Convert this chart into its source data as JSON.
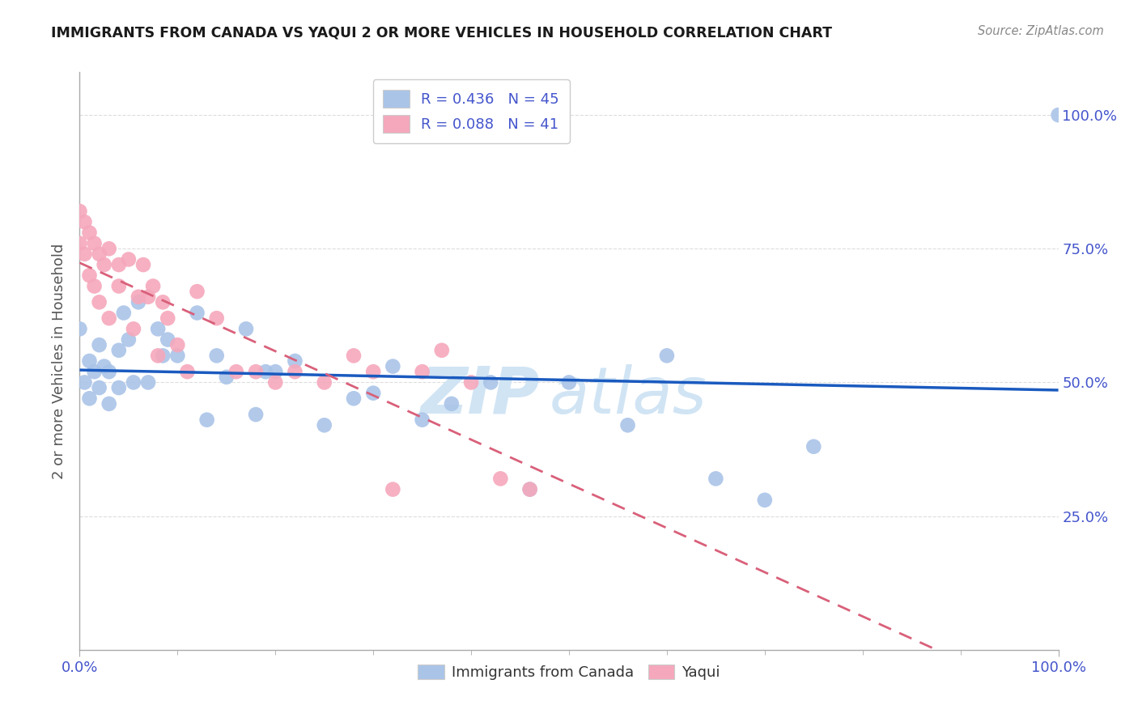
{
  "title": "IMMIGRANTS FROM CANADA VS YAQUI 2 OR MORE VEHICLES IN HOUSEHOLD CORRELATION CHART",
  "source": "Source: ZipAtlas.com",
  "ylabel": "2 or more Vehicles in Household",
  "legend_label1": "Immigrants from Canada",
  "legend_label2": "Yaqui",
  "R1": "0.436",
  "N1": "45",
  "R2": "0.088",
  "N2": "41",
  "color_blue": "#aac4e8",
  "color_pink": "#f5a8bc",
  "line_color_blue": "#1a5abf",
  "line_color_pink": "#d9607a",
  "tick_color": "#4455cc",
  "title_color": "#1a1a1a",
  "source_color": "#888888",
  "ylabel_color": "#555555",
  "grid_color": "#dddddd",
  "watermark_color": "#d0e4f4",
  "blue_scatter_x": [
    0.0,
    0.005,
    0.01,
    0.01,
    0.015,
    0.02,
    0.02,
    0.025,
    0.03,
    0.03,
    0.04,
    0.04,
    0.045,
    0.05,
    0.055,
    0.06,
    0.07,
    0.08,
    0.085,
    0.09,
    0.1,
    0.12,
    0.13,
    0.14,
    0.15,
    0.17,
    0.18,
    0.19,
    0.2,
    0.22,
    0.25,
    0.28,
    0.3,
    0.32,
    0.35,
    0.38,
    0.42,
    0.46,
    0.5,
    0.56,
    0.6,
    0.65,
    0.7,
    0.75,
    1.0
  ],
  "blue_scatter_y": [
    0.6,
    0.5,
    0.54,
    0.47,
    0.52,
    0.49,
    0.57,
    0.53,
    0.52,
    0.46,
    0.56,
    0.49,
    0.63,
    0.58,
    0.5,
    0.65,
    0.5,
    0.6,
    0.55,
    0.58,
    0.55,
    0.63,
    0.43,
    0.55,
    0.51,
    0.6,
    0.44,
    0.52,
    0.52,
    0.54,
    0.42,
    0.47,
    0.48,
    0.53,
    0.43,
    0.46,
    0.5,
    0.3,
    0.5,
    0.42,
    0.55,
    0.32,
    0.28,
    0.38,
    1.0
  ],
  "pink_scatter_x": [
    0.0,
    0.0,
    0.005,
    0.005,
    0.01,
    0.01,
    0.015,
    0.015,
    0.02,
    0.02,
    0.025,
    0.03,
    0.03,
    0.04,
    0.04,
    0.05,
    0.055,
    0.06,
    0.065,
    0.07,
    0.075,
    0.08,
    0.085,
    0.09,
    0.1,
    0.11,
    0.12,
    0.14,
    0.16,
    0.18,
    0.2,
    0.22,
    0.25,
    0.28,
    0.3,
    0.32,
    0.35,
    0.37,
    0.4,
    0.43,
    0.46
  ],
  "pink_scatter_y": [
    0.82,
    0.76,
    0.8,
    0.74,
    0.78,
    0.7,
    0.76,
    0.68,
    0.74,
    0.65,
    0.72,
    0.75,
    0.62,
    0.68,
    0.72,
    0.73,
    0.6,
    0.66,
    0.72,
    0.66,
    0.68,
    0.55,
    0.65,
    0.62,
    0.57,
    0.52,
    0.67,
    0.62,
    0.52,
    0.52,
    0.5,
    0.52,
    0.5,
    0.55,
    0.52,
    0.3,
    0.52,
    0.56,
    0.5,
    0.32,
    0.3
  ],
  "watermark_zip": "ZIP",
  "watermark_atlas": "atlas",
  "figsize": [
    14.06,
    8.92
  ],
  "dpi": 100,
  "xlim": [
    0.0,
    1.0
  ],
  "ylim": [
    0.0,
    1.08
  ],
  "yticks": [
    0.25,
    0.5,
    0.75,
    1.0
  ],
  "ytick_labels": [
    "25.0%",
    "50.0%",
    "75.0%",
    "100.0%"
  ],
  "xtick_left": "0.0%",
  "xtick_right": "100.0%"
}
